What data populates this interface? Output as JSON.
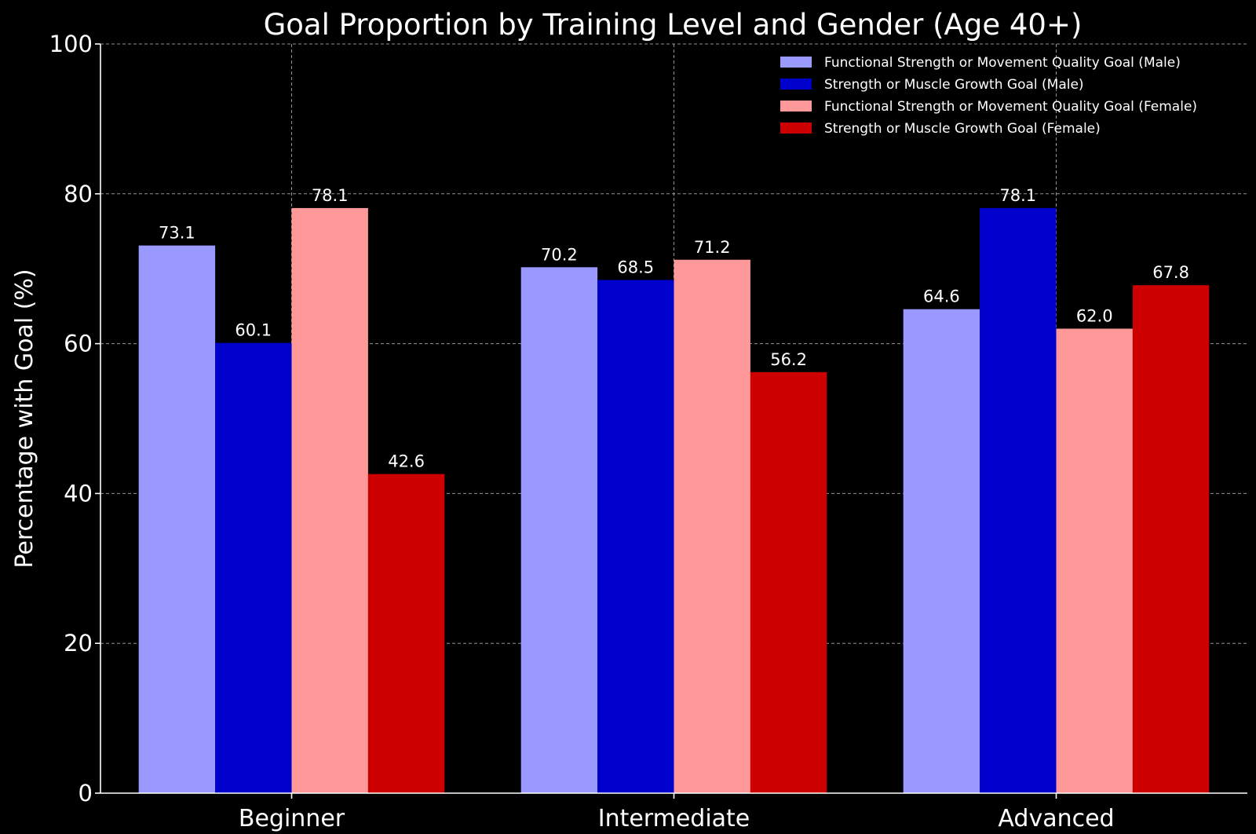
{
  "chart_data": {
    "type": "bar",
    "title": "Goal Proportion by Training Level and Gender (Age 40+)",
    "xlabel": "",
    "ylabel": "Percentage with Goal (%)",
    "ylim": [
      0,
      100
    ],
    "yticks": [
      0,
      20,
      40,
      60,
      80,
      100
    ],
    "grid": true,
    "legend_position": "top-right",
    "categories": [
      "Beginner",
      "Intermediate",
      "Advanced"
    ],
    "series": [
      {
        "name": "Functional Strength or Movement Quality Goal (Male)",
        "color": "#9999ff",
        "values": [
          73.1,
          70.2,
          64.6
        ]
      },
      {
        "name": "Strength or Muscle Growth Goal (Male)",
        "color": "#0000cc",
        "values": [
          60.1,
          68.5,
          78.1
        ]
      },
      {
        "name": "Functional Strength or Movement Quality Goal (Female)",
        "color": "#ff9999",
        "values": [
          78.1,
          71.2,
          62.0
        ]
      },
      {
        "name": "Strength or Muscle Growth Goal (Female)",
        "color": "#cc0000",
        "values": [
          42.6,
          56.2,
          67.8
        ]
      }
    ]
  }
}
